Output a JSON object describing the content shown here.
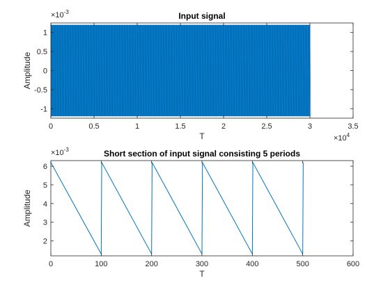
{
  "chart_data": [
    {
      "type": "line",
      "title": "Input signal",
      "xlabel": "T",
      "ylabel": "Amplitude",
      "xlim": [
        0,
        35000
      ],
      "ylim": [
        -0.00125,
        0.00125
      ],
      "x_ticks": [
        0,
        0.5,
        1,
        1.5,
        2,
        2.5,
        3,
        3.5
      ],
      "x_tick_labels": [
        "0",
        "0.5",
        "1",
        "1.5",
        "2",
        "2.5",
        "3",
        "3.5"
      ],
      "x_exponent": "×10",
      "x_exponent_power": "4",
      "y_ticks": [
        -1,
        -0.5,
        0,
        0.5,
        1
      ],
      "y_tick_labels": [
        "-1",
        "-0.5",
        "0",
        "0.5",
        "1"
      ],
      "y_exponent": "×10",
      "y_exponent_power": "-3",
      "grid": false,
      "color": "#0072BD",
      "series": [
        {
          "x_start": 0,
          "x_end": 30000,
          "period": 100,
          "ymin": -0.0012,
          "ymax": 0.0012
        }
      ]
    },
    {
      "type": "line",
      "title": "Short section of input signal consisting 5 periods",
      "xlabel": "T",
      "ylabel": "Amplitude",
      "xlim": [
        0,
        600
      ],
      "ylim": [
        0.0012,
        0.0063
      ],
      "x_ticks": [
        0,
        100,
        200,
        300,
        400,
        500,
        600
      ],
      "x_tick_labels": [
        "0",
        "100",
        "200",
        "300",
        "400",
        "500",
        "600"
      ],
      "y_ticks": [
        2,
        3,
        4,
        5,
        6
      ],
      "y_tick_labels": [
        "2",
        "3",
        "4",
        "5",
        "6"
      ],
      "y_exponent": "×10",
      "y_exponent_power": "-3",
      "grid": false,
      "color": "#0072BD",
      "series": [
        {
          "x": [
            0,
            100,
            101,
            200,
            201,
            300,
            301,
            400,
            401,
            500,
            501
          ],
          "y": [
            0.0062,
            0.0013,
            0.0062,
            0.0013,
            0.0062,
            0.0013,
            0.0062,
            0.0013,
            0.0062,
            0.0013,
            0.0062
          ]
        }
      ]
    }
  ]
}
